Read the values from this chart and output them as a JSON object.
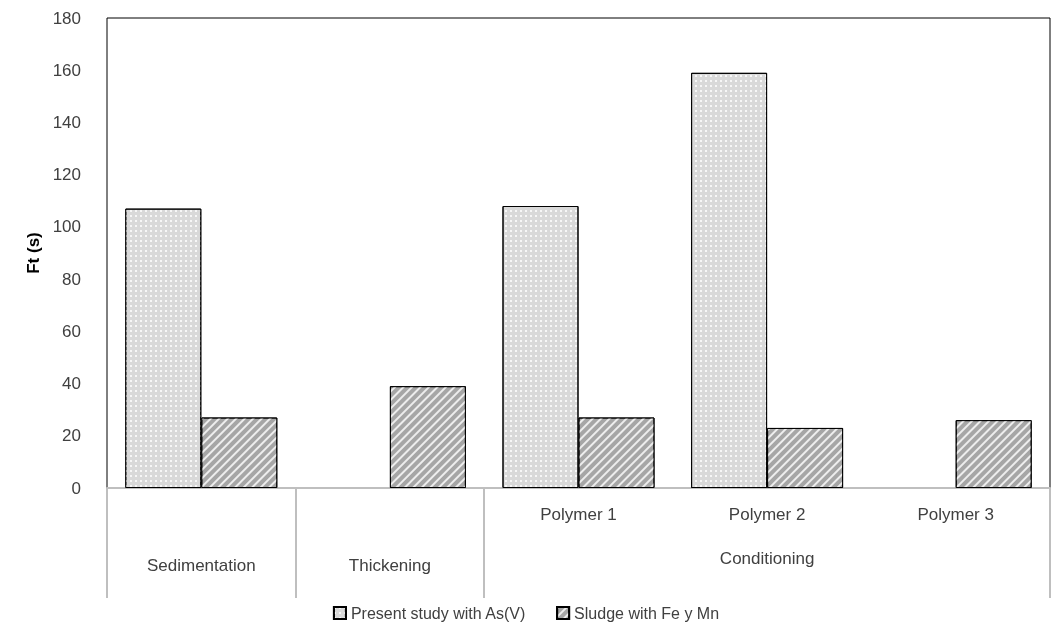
{
  "chart_data": {
    "type": "bar",
    "ylabel": "Ft (s)",
    "categories": [
      "Sedimentation",
      "Thickening",
      "Polymer 1",
      "Polymer 2",
      "Polymer 3"
    ],
    "series": [
      {
        "name": "Present study with As(V)",
        "color": "#d9d9d9",
        "values": [
          107,
          null,
          108,
          159,
          null
        ]
      },
      {
        "name": "Sludge with Fe y Mn",
        "color": "#a6a6a6",
        "values": [
          27,
          39,
          27,
          23,
          26
        ]
      }
    ],
    "ylim": [
      0,
      180
    ],
    "yticks": [
      0,
      20,
      40,
      60,
      80,
      100,
      120,
      140,
      160,
      180
    ],
    "grid": false,
    "legend": "bottom",
    "annotations": [
      "Conditioning"
    ]
  }
}
